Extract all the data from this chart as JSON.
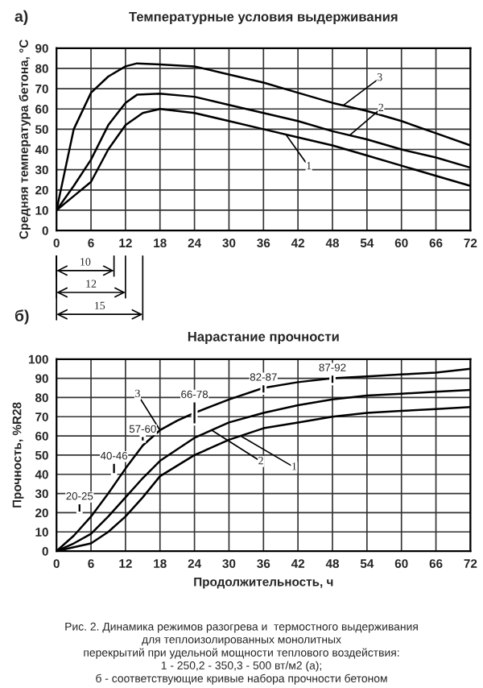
{
  "chart_data": [
    {
      "type": "line",
      "title": "Температурные условия выдерживания",
      "ylabel": "Средняя температура бетона, °С",
      "xlim": [
        0,
        72
      ],
      "xticks": [
        0,
        6,
        12,
        18,
        24,
        30,
        36,
        42,
        48,
        54,
        60,
        66,
        72
      ],
      "ylim": [
        0,
        90
      ],
      "yticks": [
        0,
        10,
        20,
        30,
        40,
        50,
        60,
        70,
        80,
        90
      ],
      "grid": true,
      "marker": "none",
      "line_style": "solid",
      "series": [
        {
          "color": "#000000",
          "x": [
            0,
            3,
            6,
            9,
            12,
            15,
            18,
            24,
            30,
            36,
            42,
            48,
            54,
            60,
            66,
            72
          ],
          "values": [
            10,
            17,
            24,
            40,
            52,
            58,
            60,
            58,
            54,
            50,
            46,
            42,
            37,
            32,
            27,
            22
          ]
        },
        {
          "color": "#000000",
          "x": [
            0,
            3,
            6,
            9,
            12,
            14,
            18,
            24,
            30,
            36,
            42,
            48,
            54,
            60,
            66,
            72
          ],
          "values": [
            10,
            22,
            35,
            52,
            63,
            67,
            67.5,
            66,
            62,
            58,
            54,
            49,
            45,
            40,
            36,
            31
          ]
        },
        {
          "color": "#000000",
          "x": [
            0,
            3,
            6,
            9,
            12,
            14,
            18,
            24,
            30,
            36,
            42,
            48,
            54,
            60,
            66,
            72
          ],
          "values": [
            10,
            50,
            68,
            76,
            81,
            82.5,
            82,
            81,
            77,
            73,
            68,
            63,
            59,
            54,
            48,
            42
          ]
        }
      ],
      "annotations": [
        "а)",
        {
          "text": "1",
          "x": 40,
          "y": 47
        },
        {
          "text": "2",
          "x": 51,
          "y": 47
        },
        {
          "text": "3",
          "x": 50,
          "y": 62
        },
        "10",
        "12",
        "15"
      ]
    },
    {
      "type": "line",
      "title": "Нарастание прочности",
      "xlabel": "Продолжительность, ч",
      "ylabel": "Прочность, %R28",
      "xlim": [
        0,
        72
      ],
      "xticks": [
        0,
        6,
        12,
        18,
        24,
        30,
        36,
        42,
        48,
        54,
        60,
        66,
        72
      ],
      "ylim": [
        0,
        100
      ],
      "yticks": [
        0,
        10,
        20,
        30,
        40,
        50,
        60,
        70,
        80,
        90,
        100
      ],
      "grid": true,
      "marker": "none",
      "line_style": "solid",
      "series": [
        {
          "color": "#000000",
          "x": [
            0,
            6,
            9,
            12,
            15,
            18,
            24,
            30,
            36,
            42,
            48,
            54,
            60,
            66,
            72
          ],
          "values": [
            0,
            4,
            10,
            18,
            28,
            39,
            50,
            58,
            64,
            67,
            70,
            72,
            73,
            74,
            75
          ]
        },
        {
          "color": "#000000",
          "x": [
            0,
            3,
            6,
            9,
            12,
            15,
            18,
            24,
            30,
            36,
            42,
            48,
            54,
            60,
            66,
            72
          ],
          "values": [
            0,
            4,
            9,
            18,
            28,
            38,
            47,
            59,
            67,
            72,
            76,
            79,
            81,
            82,
            83,
            84
          ]
        },
        {
          "color": "#000000",
          "x": [
            0,
            3,
            6,
            9,
            12,
            15,
            18,
            21,
            24,
            30,
            36,
            42,
            48,
            54,
            60,
            66,
            72
          ],
          "values": [
            0,
            8,
            18,
            30,
            43,
            55,
            63,
            68,
            72,
            79,
            85,
            88,
            90,
            91,
            92,
            93,
            95
          ]
        },
        {
          "type": "bar",
          "color": "#000000",
          "x": [
            4,
            10,
            15,
            24,
            36,
            48
          ],
          "base": [
            20,
            40,
            57,
            66,
            82,
            87
          ],
          "values": [
            5,
            6,
            3,
            12,
            5,
            5
          ],
          "value_labels": [
            "20-25",
            "40-46",
            "57-60",
            "66-78",
            "82-87",
            "87-92"
          ]
        }
      ],
      "annotations": [
        "б)",
        {
          "text": "1",
          "x": 32,
          "y": 60
        },
        {
          "text": "2",
          "x": 27,
          "y": 63
        },
        {
          "text": "3",
          "x": 18,
          "y": 63
        },
        "Рис. 2. Динамика режимов разогрева и  термостного выдерживания\nдля теплоизолированных монолитных\nперекрытий при удельной мощности теплового воздействия:\n1 - 250,2 - 350,3 - 500 вт/м2 (а);\nб - соответствующие кривые набора прочности бетоном"
      ]
    }
  ]
}
